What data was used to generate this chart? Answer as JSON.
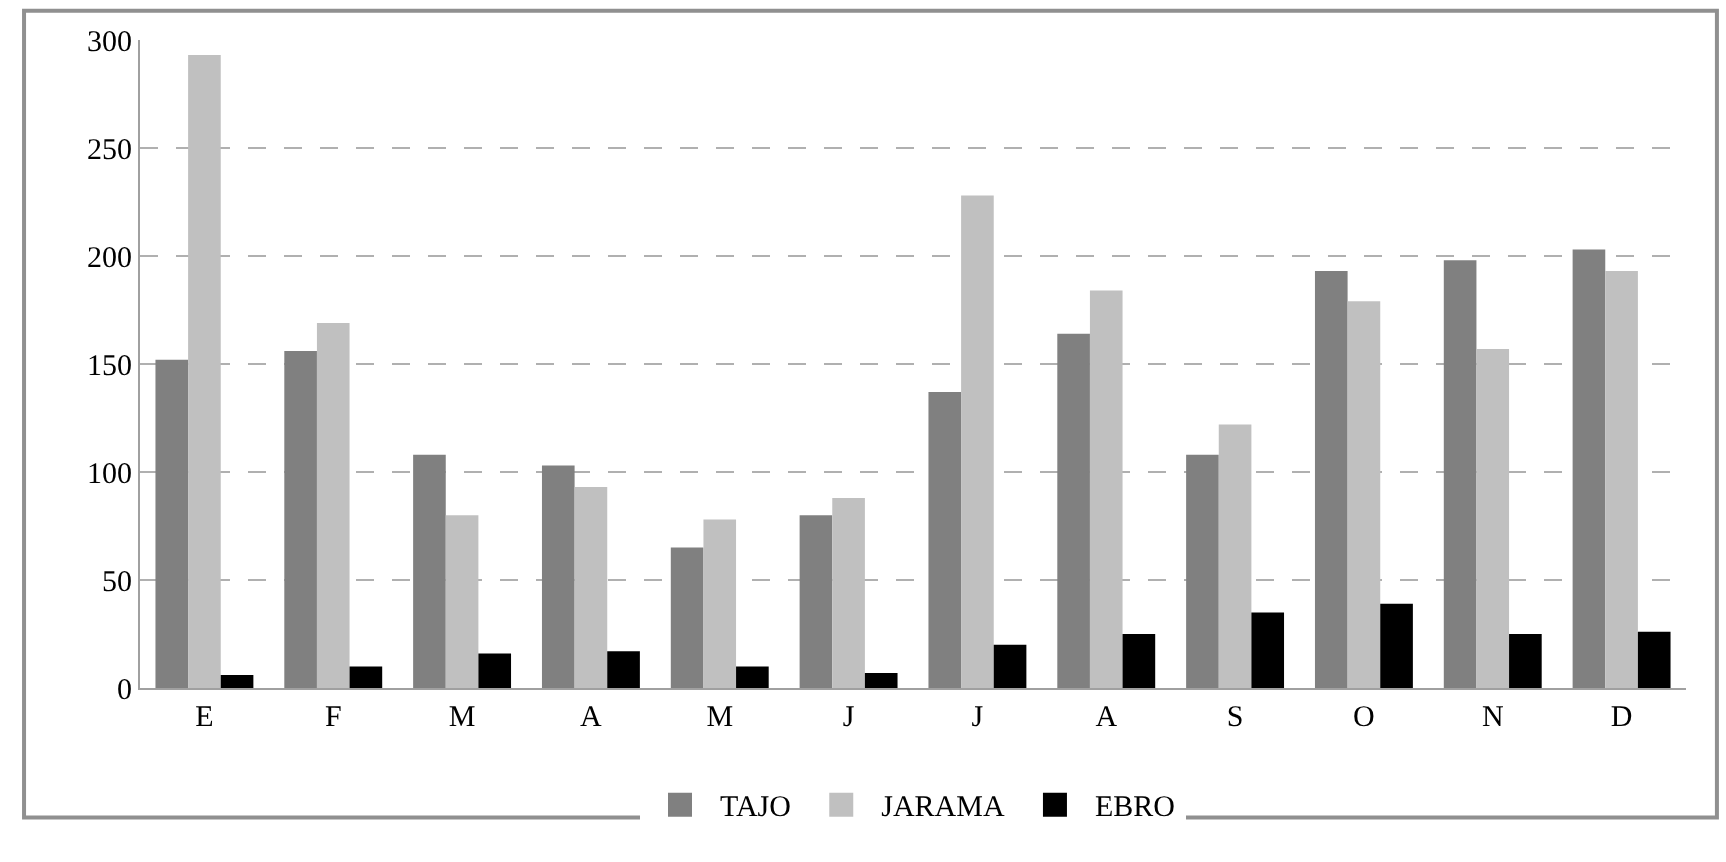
{
  "chart_data": {
    "type": "bar",
    "categories": [
      "E",
      "F",
      "M",
      "A",
      "M",
      "J",
      "J",
      "A",
      "S",
      "O",
      "N",
      "D"
    ],
    "series": [
      {
        "name": "TAJO",
        "color": "#808080",
        "values": [
          152,
          156,
          108,
          103,
          65,
          80,
          137,
          164,
          108,
          193,
          198,
          203
        ]
      },
      {
        "name": "JARAMA",
        "color": "#c0c0c0",
        "values": [
          293,
          169,
          80,
          93,
          78,
          88,
          228,
          184,
          122,
          179,
          157,
          193
        ]
      },
      {
        "name": "EBRO",
        "color": "#000000",
        "values": [
          6,
          10,
          16,
          17,
          10,
          7,
          20,
          25,
          35,
          39,
          25,
          26
        ]
      }
    ],
    "ylim": [
      0,
      300
    ],
    "yticks": [
      0,
      50,
      100,
      150,
      200,
      250,
      300
    ],
    "grid": "y",
    "legend": "bottom"
  }
}
